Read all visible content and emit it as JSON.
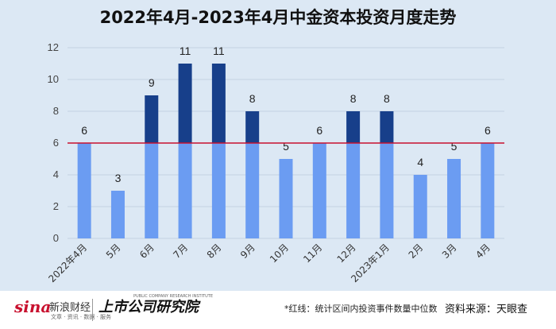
{
  "chart_data": {
    "type": "bar",
    "title": "2022年4月-2023年4月中金资本投资月度走势",
    "categories": [
      "2022年4月",
      "5月",
      "6月",
      "7月",
      "8月",
      "9月",
      "10月",
      "11月",
      "12月",
      "2023年1月",
      "2月",
      "3月",
      "4月"
    ],
    "values": [
      6,
      3,
      9,
      11,
      11,
      8,
      5,
      6,
      8,
      8,
      4,
      5,
      6
    ],
    "ylim": [
      0,
      12
    ],
    "yticks": [
      0,
      2,
      4,
      6,
      8,
      10,
      12
    ],
    "reference_line": {
      "value": 6,
      "label": "红线：统计区间内投资事件数量中位数"
    },
    "xlabel": "",
    "ylabel": ""
  },
  "colors": {
    "bar_base": "#6b9cf2",
    "bar_above": "#173f8a",
    "reference_line": "#c8102e",
    "background": "#dce8f4",
    "gridline": "#c3d2e2"
  },
  "footer": {
    "sina_brand": "sina",
    "sina_cn": "新浪财经",
    "sina_sub": "文章 · 资讯 · 数据 · 服务",
    "research_brand": "上市公司研究院",
    "research_en": "PUBLIC COMPANY RESEARCH INSTITUTE",
    "note": "*红线：统计区间内投资事件数量中位数",
    "source": "资料来源：天眼查"
  }
}
